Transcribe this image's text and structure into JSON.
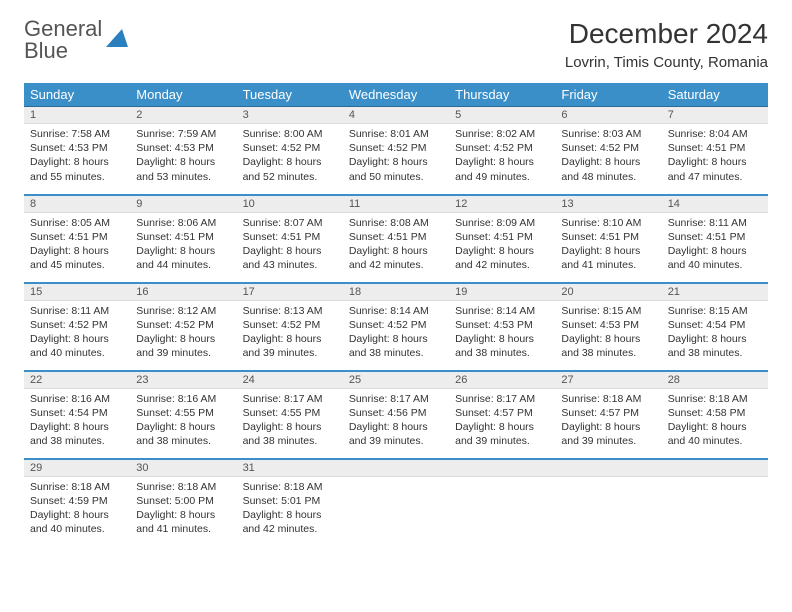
{
  "logo": {
    "line1": "General",
    "line2": "Blue"
  },
  "title": "December 2024",
  "location": "Lovrin, Timis County, Romania",
  "colors": {
    "header_bg": "#3b8fc9",
    "header_text": "#ffffff",
    "row_divider": "#3b8fc9",
    "daynum_bg": "#ededed",
    "logo_gray": "#555555",
    "logo_blue": "#2a7fbf"
  },
  "weekdays": [
    "Sunday",
    "Monday",
    "Tuesday",
    "Wednesday",
    "Thursday",
    "Friday",
    "Saturday"
  ],
  "weeks": [
    [
      {
        "d": "1",
        "sr": "7:58 AM",
        "ss": "4:53 PM",
        "dl": "8 hours and 55 minutes."
      },
      {
        "d": "2",
        "sr": "7:59 AM",
        "ss": "4:53 PM",
        "dl": "8 hours and 53 minutes."
      },
      {
        "d": "3",
        "sr": "8:00 AM",
        "ss": "4:52 PM",
        "dl": "8 hours and 52 minutes."
      },
      {
        "d": "4",
        "sr": "8:01 AM",
        "ss": "4:52 PM",
        "dl": "8 hours and 50 minutes."
      },
      {
        "d": "5",
        "sr": "8:02 AM",
        "ss": "4:52 PM",
        "dl": "8 hours and 49 minutes."
      },
      {
        "d": "6",
        "sr": "8:03 AM",
        "ss": "4:52 PM",
        "dl": "8 hours and 48 minutes."
      },
      {
        "d": "7",
        "sr": "8:04 AM",
        "ss": "4:51 PM",
        "dl": "8 hours and 47 minutes."
      }
    ],
    [
      {
        "d": "8",
        "sr": "8:05 AM",
        "ss": "4:51 PM",
        "dl": "8 hours and 45 minutes."
      },
      {
        "d": "9",
        "sr": "8:06 AM",
        "ss": "4:51 PM",
        "dl": "8 hours and 44 minutes."
      },
      {
        "d": "10",
        "sr": "8:07 AM",
        "ss": "4:51 PM",
        "dl": "8 hours and 43 minutes."
      },
      {
        "d": "11",
        "sr": "8:08 AM",
        "ss": "4:51 PM",
        "dl": "8 hours and 42 minutes."
      },
      {
        "d": "12",
        "sr": "8:09 AM",
        "ss": "4:51 PM",
        "dl": "8 hours and 42 minutes."
      },
      {
        "d": "13",
        "sr": "8:10 AM",
        "ss": "4:51 PM",
        "dl": "8 hours and 41 minutes."
      },
      {
        "d": "14",
        "sr": "8:11 AM",
        "ss": "4:51 PM",
        "dl": "8 hours and 40 minutes."
      }
    ],
    [
      {
        "d": "15",
        "sr": "8:11 AM",
        "ss": "4:52 PM",
        "dl": "8 hours and 40 minutes."
      },
      {
        "d": "16",
        "sr": "8:12 AM",
        "ss": "4:52 PM",
        "dl": "8 hours and 39 minutes."
      },
      {
        "d": "17",
        "sr": "8:13 AM",
        "ss": "4:52 PM",
        "dl": "8 hours and 39 minutes."
      },
      {
        "d": "18",
        "sr": "8:14 AM",
        "ss": "4:52 PM",
        "dl": "8 hours and 38 minutes."
      },
      {
        "d": "19",
        "sr": "8:14 AM",
        "ss": "4:53 PM",
        "dl": "8 hours and 38 minutes."
      },
      {
        "d": "20",
        "sr": "8:15 AM",
        "ss": "4:53 PM",
        "dl": "8 hours and 38 minutes."
      },
      {
        "d": "21",
        "sr": "8:15 AM",
        "ss": "4:54 PM",
        "dl": "8 hours and 38 minutes."
      }
    ],
    [
      {
        "d": "22",
        "sr": "8:16 AM",
        "ss": "4:54 PM",
        "dl": "8 hours and 38 minutes."
      },
      {
        "d": "23",
        "sr": "8:16 AM",
        "ss": "4:55 PM",
        "dl": "8 hours and 38 minutes."
      },
      {
        "d": "24",
        "sr": "8:17 AM",
        "ss": "4:55 PM",
        "dl": "8 hours and 38 minutes."
      },
      {
        "d": "25",
        "sr": "8:17 AM",
        "ss": "4:56 PM",
        "dl": "8 hours and 39 minutes."
      },
      {
        "d": "26",
        "sr": "8:17 AM",
        "ss": "4:57 PM",
        "dl": "8 hours and 39 minutes."
      },
      {
        "d": "27",
        "sr": "8:18 AM",
        "ss": "4:57 PM",
        "dl": "8 hours and 39 minutes."
      },
      {
        "d": "28",
        "sr": "8:18 AM",
        "ss": "4:58 PM",
        "dl": "8 hours and 40 minutes."
      }
    ],
    [
      {
        "d": "29",
        "sr": "8:18 AM",
        "ss": "4:59 PM",
        "dl": "8 hours and 40 minutes."
      },
      {
        "d": "30",
        "sr": "8:18 AM",
        "ss": "5:00 PM",
        "dl": "8 hours and 41 minutes."
      },
      {
        "d": "31",
        "sr": "8:18 AM",
        "ss": "5:01 PM",
        "dl": "8 hours and 42 minutes."
      },
      null,
      null,
      null,
      null
    ]
  ],
  "labels": {
    "sunrise": "Sunrise:",
    "sunset": "Sunset:",
    "daylight": "Daylight:"
  }
}
